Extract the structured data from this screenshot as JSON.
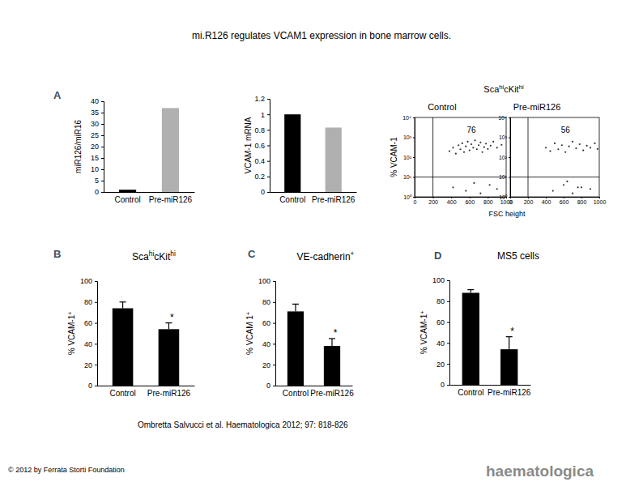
{
  "title": "mi.R126 regulates VCAM1 expression in bone marrow cells.",
  "panel_labels": [
    "A",
    "B",
    "C",
    "D"
  ],
  "flow_header": [
    "Sca",
    "hi",
    "cKit",
    "hi"
  ],
  "citation": "Ombretta Salvucci et al. Haematologica 2012; 97: 818-826",
  "copyright": "© 2012 by Ferrata Storti Foundation",
  "logo": "haematologica",
  "chart_data": [
    {
      "type": "bar",
      "y_label": "miR126/miR16",
      "categories": [
        "Control",
        "Pre-miR126"
      ],
      "values": [
        1,
        37
      ],
      "colors": [
        "#000000",
        "#b0b0b0"
      ],
      "ylim": [
        0,
        40
      ],
      "yticks": [
        0,
        5,
        10,
        15,
        20,
        25,
        30,
        35,
        40
      ]
    },
    {
      "type": "bar",
      "y_label": "VCAM-1 mRNA",
      "categories": [
        "Control",
        "Pre-miR126"
      ],
      "values": [
        1,
        0.83
      ],
      "colors": [
        "#000000",
        "#b0b0b0"
      ],
      "ylim": [
        0,
        1.2
      ],
      "yticks": [
        0,
        0.2,
        0.4,
        0.6,
        0.8,
        1,
        1.2
      ]
    },
    {
      "type": "scatter",
      "title": "Control",
      "y_label": "% VCAM-1",
      "x_label": "FSC height",
      "log": "y",
      "x": [
        380,
        420,
        450,
        480,
        500,
        520,
        540,
        560,
        580,
        600,
        620,
        640,
        660,
        680,
        700,
        720,
        740,
        760,
        780,
        800,
        830,
        860,
        900,
        950,
        420,
        560,
        650,
        720,
        820,
        900
      ],
      "values": [
        200,
        300,
        150,
        400,
        250,
        500,
        180,
        350,
        600,
        220,
        450,
        300,
        700,
        250,
        400,
        550,
        180,
        320,
        480,
        260,
        380,
        600,
        300,
        420,
        3,
        2,
        5,
        1.5,
        4,
        2.5
      ],
      "color": "#333333",
      "marker": "circle",
      "xlim": [
        0,
        1000
      ],
      "ylim": [
        1,
        10000
      ],
      "xticks": [
        0,
        200,
        400,
        600,
        800,
        1000
      ],
      "yticks": [
        {
          "value": 1,
          "label": "10⁰"
        },
        {
          "value": 10,
          "label": "10¹"
        },
        {
          "value": 100,
          "label": "10²"
        },
        {
          "value": 1000,
          "label": "10³"
        },
        {
          "value": 10000,
          "label": "10⁴"
        }
      ],
      "gate_x": 200,
      "gate_y": 10,
      "gate_percent": 76
    },
    {
      "type": "scatter",
      "title": "Pre-miR126",
      "log": "y",
      "x": [
        400,
        450,
        500,
        540,
        580,
        620,
        660,
        700,
        740,
        780,
        820,
        860,
        900,
        950,
        980,
        480,
        600,
        700,
        800,
        900,
        640,
        760
      ],
      "values": [
        300,
        200,
        500,
        250,
        400,
        180,
        350,
        600,
        280,
        450,
        220,
        380,
        300,
        500,
        260,
        2,
        4,
        1.5,
        3,
        2.5,
        6,
        3
      ],
      "color": "#333333",
      "marker": "circle",
      "xlim": [
        0,
        1000
      ],
      "ylim": [
        1,
        10000
      ],
      "xticks": [
        0,
        200,
        400,
        600,
        800,
        1000
      ],
      "yticks": [
        {
          "value": 1,
          "label": "10⁰"
        },
        {
          "value": 10,
          "label": "10¹"
        },
        {
          "value": 100,
          "label": "10²"
        },
        {
          "value": 1000,
          "label": "10³"
        },
        {
          "value": 10000,
          "label": "10⁴"
        }
      ],
      "gate_x": 200,
      "gate_y": 10,
      "gate_percent": 56
    },
    {
      "type": "bar",
      "title": [
        "Sca",
        "hi",
        "cKit",
        "hi"
      ],
      "y_label": [
        "% VCAM-1",
        "+"
      ],
      "categories": [
        "Control",
        "Pre-miR126"
      ],
      "values": [
        74,
        54
      ],
      "errors": [
        6,
        6
      ],
      "significance": [
        null,
        "*"
      ],
      "color": "#000000",
      "ylim": [
        0,
        100
      ],
      "yticks": [
        0,
        20,
        40,
        60,
        80,
        100
      ]
    },
    {
      "type": "bar",
      "title": [
        "VE-cadherin",
        "+"
      ],
      "y_label": [
        "% VCAM 1",
        "+"
      ],
      "categories": [
        "Control",
        "Pre-miR126"
      ],
      "values": [
        71,
        38
      ],
      "errors": [
        7,
        7
      ],
      "significance": [
        null,
        "*"
      ],
      "color": "#000000",
      "ylim": [
        0,
        100
      ],
      "yticks": [
        0,
        20,
        40,
        60,
        80,
        100
      ]
    },
    {
      "type": "bar",
      "title": "MS5 cells",
      "y_label": [
        "% VCAM-1",
        "+"
      ],
      "categories": [
        "Control",
        "Pre-miR126"
      ],
      "values": [
        88,
        34
      ],
      "errors": [
        3,
        12
      ],
      "significance": [
        null,
        "*"
      ],
      "color": "#000000",
      "ylim": [
        0,
        100
      ],
      "yticks": [
        0,
        20,
        40,
        60,
        80,
        100
      ]
    }
  ]
}
